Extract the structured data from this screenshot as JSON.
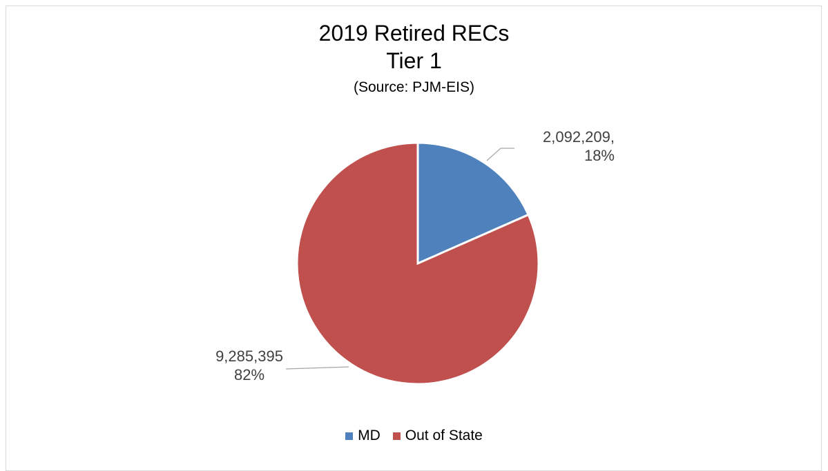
{
  "chart_data": {
    "type": "pie",
    "title": "2019 Retired RECs",
    "subtitle": "Tier 1",
    "source_note": "(Source: PJM-EIS)",
    "slices": [
      {
        "name": "MD",
        "value": 2092209,
        "percent": 18,
        "color": "#4f81bd",
        "label_value": "2,092,209,",
        "label_percent": "18%"
      },
      {
        "name": "Out of State",
        "value": 9285395,
        "percent": 82,
        "color": "#c0504d",
        "label_value": "9,285,395",
        "label_percent": "82%"
      }
    ],
    "legend_placement": "bottom"
  }
}
